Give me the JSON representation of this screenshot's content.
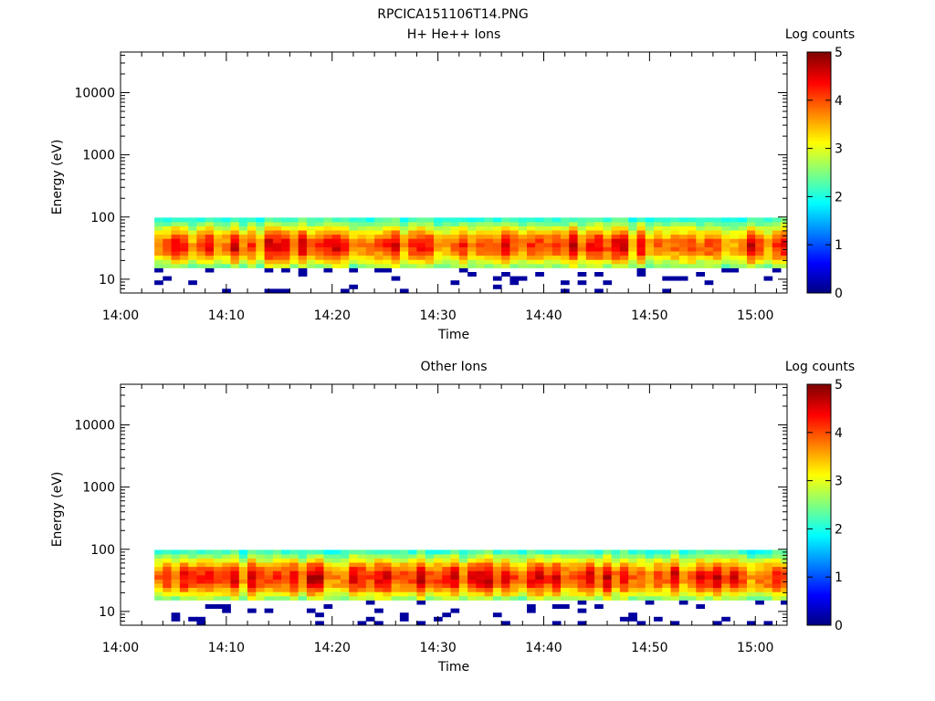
{
  "figure_title": "RPCICA151106T14.PNG",
  "chart_data": [
    {
      "type": "heatmap",
      "title": "H+ He++ Ions",
      "xlabel": "Time",
      "ylabel": "Energy (eV)",
      "x_ticks": [
        "14:00",
        "14:10",
        "14:20",
        "14:30",
        "14:40",
        "14:50",
        "15:00"
      ],
      "x_range_minutes": [
        0,
        63
      ],
      "y_scale": "log",
      "y_ticks": [
        "10",
        "100",
        "1000",
        "10000"
      ],
      "y_range": [
        6,
        45000
      ],
      "colorbar": {
        "label": "Log counts",
        "ticks": [
          "0",
          "1",
          "2",
          "3",
          "4",
          "5"
        ],
        "range": [
          0,
          5
        ],
        "colormap": "jet"
      },
      "data_start_minute": 3.2,
      "data_end_minute": 63,
      "band_low_eV": 15,
      "band_high_eV": 98,
      "typical_peak_log_counts": 3.3,
      "peak_energy_eV": 35,
      "seed": 11
    },
    {
      "type": "heatmap",
      "title": "Other Ions",
      "xlabel": "Time",
      "ylabel": "Energy (eV)",
      "x_ticks": [
        "14:00",
        "14:10",
        "14:20",
        "14:30",
        "14:40",
        "14:50",
        "15:00"
      ],
      "x_range_minutes": [
        0,
        63
      ],
      "y_scale": "log",
      "y_ticks": [
        "10",
        "100",
        "1000",
        "10000"
      ],
      "y_range": [
        6,
        45000
      ],
      "colorbar": {
        "label": "Log counts",
        "ticks": [
          "0",
          "1",
          "2",
          "3",
          "4",
          "5"
        ],
        "range": [
          0,
          5
        ],
        "colormap": "jet"
      },
      "data_start_minute": 3.2,
      "data_end_minute": 63,
      "band_low_eV": 15,
      "band_high_eV": 98,
      "typical_peak_log_counts": 3.4,
      "peak_energy_eV": 35,
      "seed": 27
    }
  ]
}
